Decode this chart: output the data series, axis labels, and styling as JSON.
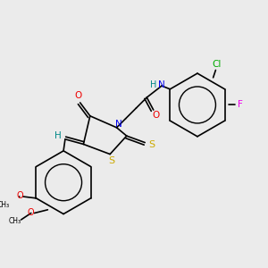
{
  "background_color": "#ebebeb",
  "figsize": [
    3.0,
    3.0
  ],
  "dpi": 100,
  "lw": 1.2,
  "colors": {
    "black": "#000000",
    "Cl": "#00aa00",
    "F": "#ee00ee",
    "N": "#0000ee",
    "O": "#ee0000",
    "S": "#ccaa00",
    "H": "#008888"
  }
}
